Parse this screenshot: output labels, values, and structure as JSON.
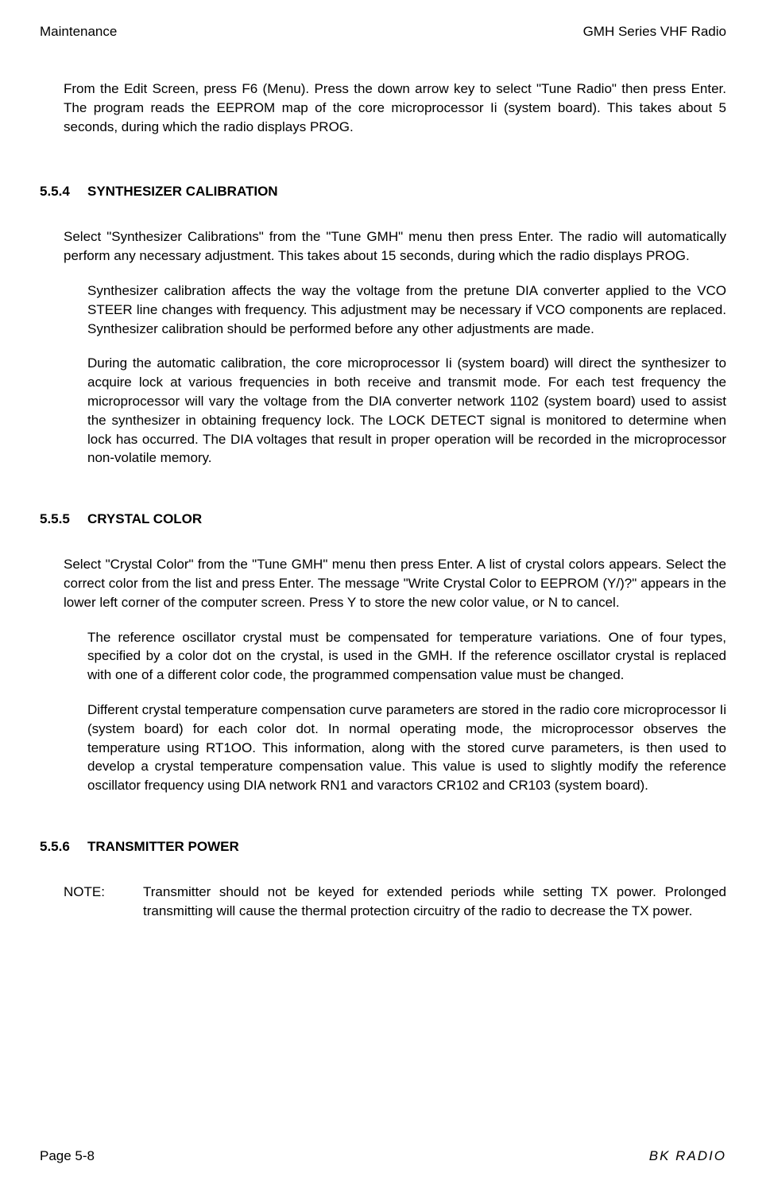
{
  "header": {
    "left": "Maintenance",
    "right": "GMH Series VHF Radio"
  },
  "intro": "From the Edit Screen, press F6 (Menu). Press the down arrow key to select \"Tune Radio\" then press Enter. The program reads the EEPROM map of the core microprocessor Ii (system board). This takes about 5 seconds, during which the radio displays PROG.",
  "sections": [
    {
      "num": "5.5.4",
      "title": "SYNTHESIZER CALIBRATION",
      "para": "Select \"Synthesizer Calibrations\" from the \"Tune GMH\" menu then press Enter. The radio will automatically perform any necessary adjustment. This takes about 15 seconds, during which the radio displays PROG.",
      "indented": [
        "Synthesizer calibration affects the way the voltage from the pretune DIA converter applied to the VCO STEER line changes with frequency. This adjustment may be necessary if VCO components are replaced. Synthesizer calibration should be performed before any other adjustments are made.",
        "During the automatic calibration, the core microprocessor Ii (system board) will direct the synthesizer to acquire lock at various frequencies in both receive and transmit mode. For each test frequency the microprocessor will vary the voltage from the DIA converter network 1102 (system board) used to assist the synthesizer in obtaining frequency lock. The LOCK DETECT signal is monitored to determine when lock has occurred. The DIA voltages that result in proper operation will be recorded in the microprocessor non-volatile memory."
      ]
    },
    {
      "num": "5.5.5",
      "title": "CRYSTAL COLOR",
      "para": "Select \"Crystal Color\" from the \"Tune GMH\" menu then press Enter. A list of crystal colors appears. Select the correct color from the list and press Enter. The message \"Write Crystal Color to EEPROM (Y/)?\" appears in the lower left corner of the computer screen. Press Y to store the new color value, or N to cancel.",
      "indented": [
        "The reference oscillator crystal must be compensated for temperature variations. One of four types, specified by a color dot on the crystal, is used in the GMH. If the reference oscillator crystal is replaced with one of a different color code, the programmed compensation value must be changed.",
        "Different crystal temperature compensation curve parameters are stored in the radio core microprocessor Ii (system board) for each color dot. In normal operating mode, the microprocessor observes the temperature using RT1OO. This information, along with the stored curve parameters, is then used to develop a crystal temperature compensation value. This value is used to slightly modify the reference oscillator frequency using DIA network RN1 and varactors CR102 and CR103 (system board)."
      ]
    },
    {
      "num": "5.5.6",
      "title": "TRANSMITTER POWER",
      "note_label": "NOTE:",
      "note_text": "Transmitter should not be keyed for extended periods while setting TX power. Prolonged transmitting will cause the thermal protection circuitry of the radio to decrease the TX power."
    }
  ],
  "footer": {
    "left": "Page 5-8",
    "right": "BK RADIO"
  }
}
